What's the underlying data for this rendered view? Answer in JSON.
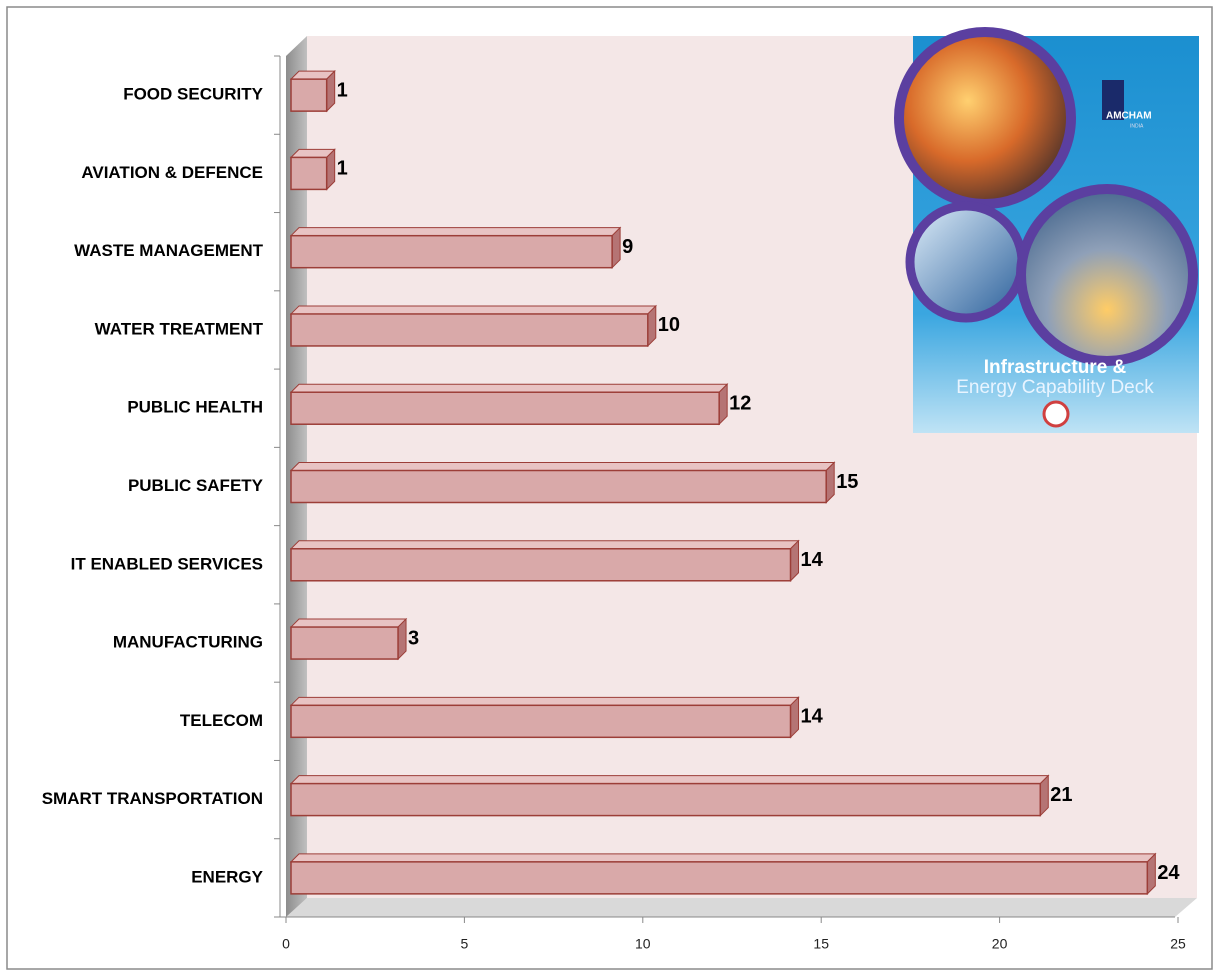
{
  "chart_data": {
    "type": "bar",
    "orientation": "horizontal",
    "categories": [
      "FOOD SECURITY",
      "AVIATION & DEFENCE",
      "WASTE MANAGEMENT",
      "WATER TREATMENT",
      "PUBLIC HEALTH",
      "PUBLIC SAFETY",
      "IT ENABLED SERVICES",
      "MANUFACTURING",
      "TELECOM",
      "SMART TRANSPORTATION",
      "ENERGY"
    ],
    "values": [
      1,
      1,
      9,
      10,
      12,
      15,
      14,
      3,
      14,
      21,
      24
    ],
    "color": "#d9a9a9",
    "xlim": [
      0,
      25
    ],
    "xticks": [
      0,
      5,
      10,
      15,
      20,
      25
    ]
  },
  "inset": {
    "brand": "AMCHAM",
    "country": "INDIA",
    "title_line1": "Infrastructure &",
    "title_line2": "Energy Capability Deck"
  }
}
